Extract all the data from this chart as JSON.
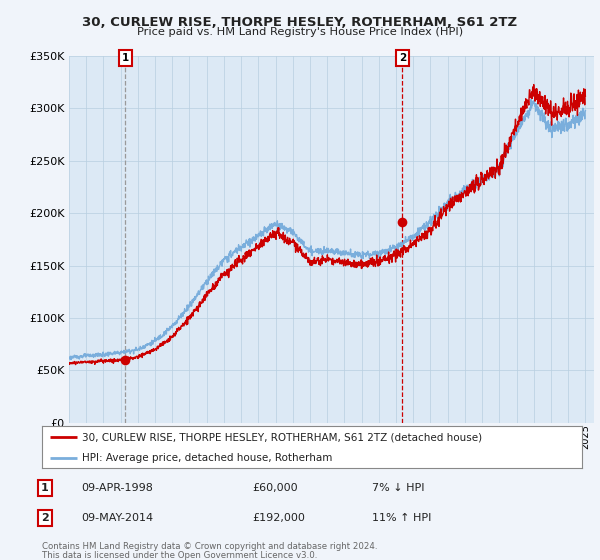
{
  "title": "30, CURLEW RISE, THORPE HESLEY, ROTHERHAM, S61 2TZ",
  "subtitle": "Price paid vs. HM Land Registry's House Price Index (HPI)",
  "red_label": "30, CURLEW RISE, THORPE HESLEY, ROTHERHAM, S61 2TZ (detached house)",
  "blue_label": "HPI: Average price, detached house, Rotherham",
  "marker1_date": "09-APR-1998",
  "marker1_price": "£60,000",
  "marker1_hpi": "7% ↓ HPI",
  "marker2_date": "09-MAY-2014",
  "marker2_price": "£192,000",
  "marker2_hpi": "11% ↑ HPI",
  "footnote1": "Contains HM Land Registry data © Crown copyright and database right 2024.",
  "footnote2": "This data is licensed under the Open Government Licence v3.0.",
  "ylim": [
    0,
    350000
  ],
  "yticks": [
    0,
    50000,
    100000,
    150000,
    200000,
    250000,
    300000,
    350000
  ],
  "xlim_start": 1995,
  "xlim_end": 2025.5,
  "background_color": "#f0f4fa",
  "plot_bg_color": "#dce9f5",
  "red_color": "#cc0000",
  "blue_color": "#7aaedc",
  "marker1_x": 1998.28,
  "marker2_x": 2014.37,
  "marker1_line_color": "#999999",
  "marker2_line_color": "#cc0000",
  "hpi_base": [
    1995,
    1996,
    1997,
    1998,
    1999,
    2000,
    2001,
    2002,
    2003,
    2004,
    2005,
    2006,
    2007,
    2008,
    2009,
    2010,
    2011,
    2012,
    2013,
    2014,
    2015,
    2016,
    2017,
    2018,
    2019,
    2020,
    2021,
    2022,
    2023,
    2024,
    2025
  ],
  "hpi_vals": [
    62000,
    64000,
    65000,
    67000,
    70000,
    78000,
    92000,
    112000,
    135000,
    155000,
    168000,
    178000,
    190000,
    182000,
    163000,
    165000,
    162000,
    160000,
    162000,
    168000,
    178000,
    192000,
    210000,
    222000,
    232000,
    242000,
    278000,
    305000,
    278000,
    285000,
    295000
  ],
  "price_base": [
    1995,
    1996,
    1997,
    1998,
    1999,
    2000,
    2001,
    2002,
    2003,
    2004,
    2005,
    2006,
    2007,
    2008,
    2009,
    2010,
    2011,
    2012,
    2013,
    2014,
    2015,
    2016,
    2017,
    2018,
    2019,
    2020,
    2021,
    2022,
    2023,
    2024,
    2025
  ],
  "price_vals": [
    57000,
    58000,
    59000,
    60000,
    63000,
    70000,
    82000,
    100000,
    122000,
    142000,
    155000,
    168000,
    182000,
    172000,
    153000,
    156000,
    153000,
    151000,
    154000,
    160000,
    170000,
    185000,
    205000,
    220000,
    232000,
    244000,
    285000,
    318000,
    295000,
    300000,
    310000
  ]
}
